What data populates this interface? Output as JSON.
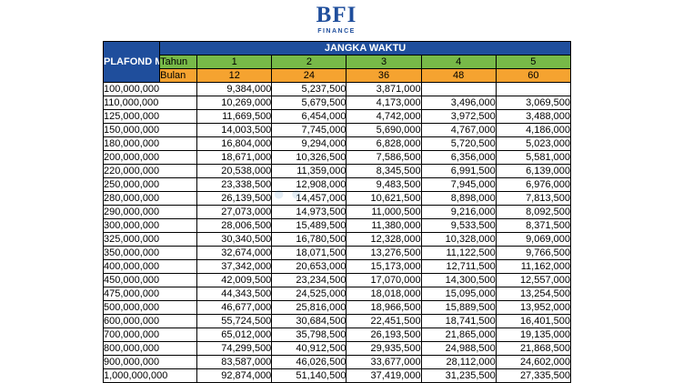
{
  "logo": {
    "mark": "BFI",
    "sub": "FINANCE"
  },
  "table": {
    "plafond_header": "PLAFOND MULTIGUNA",
    "group_header": "JANGKA WAKTU",
    "tahun_label": "Tahun",
    "bulan_label": "Bulan",
    "tahun": [
      "1",
      "2",
      "3",
      "4",
      "5"
    ],
    "bulan": [
      "12",
      "24",
      "36",
      "48",
      "60"
    ],
    "rows": [
      {
        "plafond": "100,000,000",
        "v": [
          "9,384,000",
          "5,237,500",
          "3,871,000",
          "",
          ""
        ]
      },
      {
        "plafond": "110,000,000",
        "v": [
          "10,269,000",
          "5,679,500",
          "4,173,000",
          "3,496,000",
          "3,069,500"
        ]
      },
      {
        "plafond": "125,000,000",
        "v": [
          "11,669,500",
          "6,454,000",
          "4,742,000",
          "3,972,500",
          "3,488,000"
        ]
      },
      {
        "plafond": "150,000,000",
        "v": [
          "14,003,500",
          "7,745,000",
          "5,690,000",
          "4,767,000",
          "4,186,000"
        ]
      },
      {
        "plafond": "180,000,000",
        "v": [
          "16,804,000",
          "9,294,000",
          "6,828,000",
          "5,720,500",
          "5,023,000"
        ]
      },
      {
        "plafond": "200,000,000",
        "v": [
          "18,671,000",
          "10,326,500",
          "7,586,500",
          "6,356,000",
          "5,581,000"
        ]
      },
      {
        "plafond": "220,000,000",
        "v": [
          "20,538,000",
          "11,359,000",
          "8,345,500",
          "6,991,500",
          "6,139,000"
        ]
      },
      {
        "plafond": "250,000,000",
        "v": [
          "23,338,500",
          "12,908,000",
          "9,483,500",
          "7,945,000",
          "6,976,000"
        ]
      },
      {
        "plafond": "280,000,000",
        "v": [
          "26,139,500",
          "14,457,000",
          "10,621,500",
          "8,898,000",
          "7,813,500"
        ]
      },
      {
        "plafond": "290,000,000",
        "v": [
          "27,073,000",
          "14,973,500",
          "11,000,500",
          "9,216,000",
          "8,092,500"
        ]
      },
      {
        "plafond": "300,000,000",
        "v": [
          "28,006,500",
          "15,489,500",
          "11,380,000",
          "9,533,500",
          "8,371,500"
        ]
      },
      {
        "plafond": "325,000,000",
        "v": [
          "30,340,500",
          "16,780,500",
          "12,328,000",
          "10,328,000",
          "9,069,000"
        ]
      },
      {
        "plafond": "350,000,000",
        "v": [
          "32,674,000",
          "18,071,500",
          "13,276,500",
          "11,122,500",
          "9,766,500"
        ]
      },
      {
        "plafond": "400,000,000",
        "v": [
          "37,342,000",
          "20,653,000",
          "15,173,000",
          "12,711,500",
          "11,162,000"
        ]
      },
      {
        "plafond": "450,000,000",
        "v": [
          "42,009,500",
          "23,234,500",
          "17,070,000",
          "14,300,500",
          "12,557,000"
        ]
      },
      {
        "plafond": "475,000,000",
        "v": [
          "44,343,500",
          "24,525,000",
          "18,018,000",
          "15,095,000",
          "13,254,500"
        ]
      },
      {
        "plafond": "500,000,000",
        "v": [
          "46,677,000",
          "25,816,000",
          "18,966,500",
          "15,889,500",
          "13,952,000"
        ]
      },
      {
        "plafond": "600,000,000",
        "v": [
          "55,724,500",
          "30,684,500",
          "22,451,500",
          "18,741,500",
          "16,401,500"
        ]
      },
      {
        "plafond": "700,000,000",
        "v": [
          "65,012,000",
          "35,798,500",
          "26,193,500",
          "21,865,000",
          "19,135,000"
        ]
      },
      {
        "plafond": "800,000,000",
        "v": [
          "74,299,500",
          "40,912,500",
          "29,935,500",
          "24,988,500",
          "21,868,500"
        ]
      },
      {
        "plafond": "900,000,000",
        "v": [
          "83,587,000",
          "46,026,500",
          "33,677,000",
          "28,112,000",
          "24,602,000"
        ]
      },
      {
        "plafond": "1,000,000,000",
        "v": [
          "92,874,000",
          "51,140,500",
          "37,419,000",
          "31,235,500",
          "27,335,500"
        ]
      }
    ]
  },
  "colors": {
    "header_blue": "#1f4e9c",
    "tahun_green": "#77b948",
    "bulan_orange": "#f5a330"
  }
}
